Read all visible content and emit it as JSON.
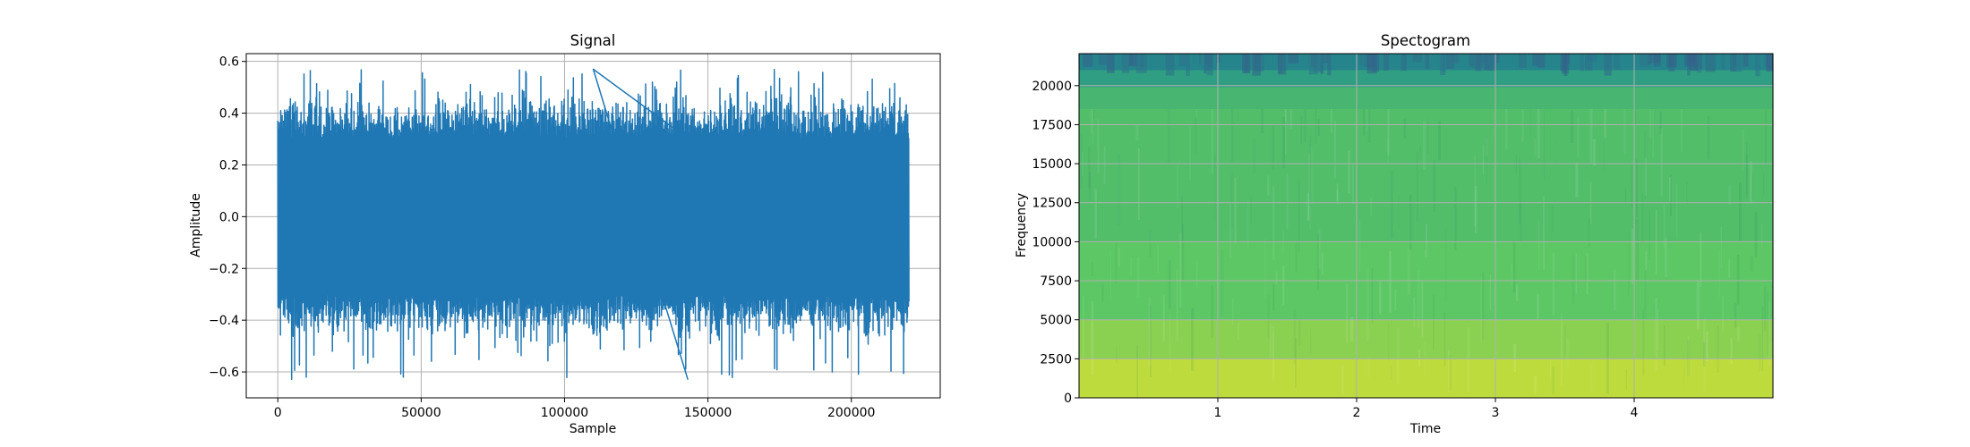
{
  "chart_data": [
    {
      "type": "line",
      "title": "Signal",
      "xlabel": "Sample",
      "ylabel": "Amplitude",
      "xlim": [
        -11000,
        231000
      ],
      "ylim": [
        -0.7,
        0.63
      ],
      "x_ticks": [
        0,
        50000,
        100000,
        150000,
        200000
      ],
      "x_tick_labels": [
        "0",
        "50000",
        "100000",
        "150000",
        "200000"
      ],
      "y_ticks": [
        -0.6,
        -0.4,
        -0.2,
        0.0,
        0.2,
        0.4,
        0.6
      ],
      "y_tick_labels": [
        "−0.6",
        "−0.4",
        "−0.2",
        "0.0",
        "0.2",
        "0.4",
        "0.6"
      ],
      "grid": true,
      "series": [
        {
          "color": "#1f77b4",
          "sample_range": [
            0,
            220000
          ],
          "typical_band": [
            -0.3,
            0.3
          ],
          "peak_max": 0.57,
          "peak_min": -0.63
        }
      ]
    },
    {
      "type": "heatmap",
      "title": "Spectogram",
      "xlabel": "Time",
      "ylabel": "Frequency",
      "xlim": [
        0,
        5
      ],
      "ylim": [
        0,
        22050
      ],
      "x_ticks": [
        1,
        2,
        3,
        4
      ],
      "x_tick_labels": [
        "1",
        "2",
        "3",
        "4"
      ],
      "y_ticks": [
        0,
        2500,
        5000,
        7500,
        10000,
        12500,
        15000,
        17500,
        20000
      ],
      "y_tick_labels": [
        "0",
        "2500",
        "5000",
        "7500",
        "10000",
        "12500",
        "15000",
        "17500",
        "20000"
      ],
      "grid": true,
      "colormap": "viridis",
      "frequency_bands": [
        {
          "from": 0,
          "to": 2500,
          "level": 0.9
        },
        {
          "from": 2500,
          "to": 5000,
          "level": 0.82
        },
        {
          "from": 5000,
          "to": 10000,
          "level": 0.74
        },
        {
          "from": 10000,
          "to": 18500,
          "level": 0.7
        },
        {
          "from": 18500,
          "to": 19900,
          "level": 0.66
        },
        {
          "from": 19900,
          "to": 21000,
          "level": 0.56
        },
        {
          "from": 21000,
          "to": 22050,
          "level": 0.45
        }
      ]
    }
  ]
}
